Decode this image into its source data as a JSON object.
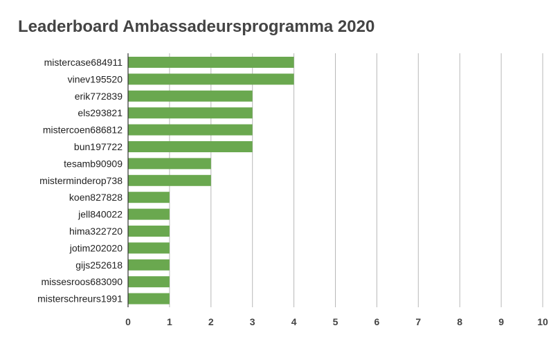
{
  "chart_data": {
    "type": "bar",
    "orientation": "horizontal",
    "title": "Leaderboard Ambassadeursprogramma 2020",
    "categories": [
      "mistercase684911",
      "vinev195520",
      "erik772839",
      "els293821",
      "mistercoen686812",
      "bun197722",
      "tesamb90909",
      "misterminderop738",
      "koen827828",
      "jell840022",
      "hima322720",
      "jotim202020",
      "gijs252618",
      "missesroos683090",
      "misterschreurs1991"
    ],
    "values": [
      4,
      4,
      3,
      3,
      3,
      3,
      2,
      2,
      1,
      1,
      1,
      1,
      1,
      1,
      1
    ],
    "xlim": [
      0,
      10
    ],
    "xticks": [
      "0",
      "1",
      "2",
      "3",
      "4",
      "5",
      "6",
      "7",
      "8",
      "9",
      "10"
    ],
    "grid": "vertical",
    "bar_color": "#6aa84f",
    "grid_color": "#b7b7b7",
    "axis_color": "#333333"
  }
}
